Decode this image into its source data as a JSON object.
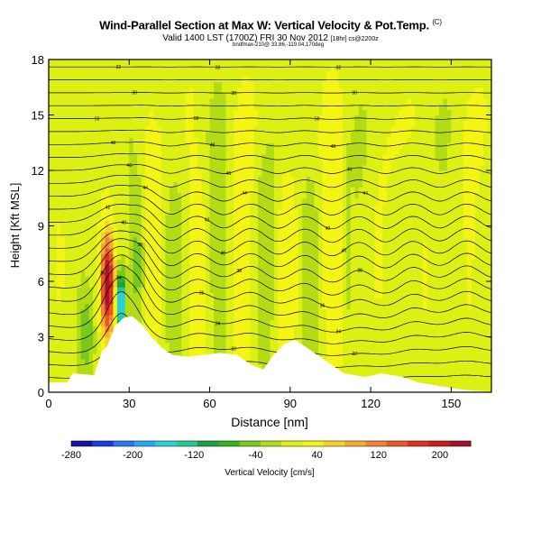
{
  "title": "Wind-Parallel Section at Max W: Vertical Velocity & Pot.Temp.",
  "title_mark": "(C)",
  "subtitle_main": "Valid 1400 LST (1700Z) FRI 30 Nov 2012",
  "subtitle_time": "[1700Z]",
  "subtitle_run": "[18hr] cs@2200z",
  "subsub": "bndfmax-210@ 33.86,-119.04,170deg",
  "chart_data": {
    "type": "heatmap",
    "title": "Wind-Parallel Section at Max W: Vertical Velocity & Pot.Temp.",
    "xlabel": "Distance [nm]",
    "ylabel": "Height [Kft MSL]",
    "xlim": [
      0,
      165
    ],
    "ylim": [
      0,
      18
    ],
    "x_ticks": [
      "0",
      "30",
      "60",
      "90",
      "120",
      "150"
    ],
    "y_ticks": [
      "0",
      "3",
      "6",
      "9",
      "12",
      "15",
      "18"
    ],
    "colorbar": {
      "label": "Vertical Velocity [cm/s]",
      "tick_labels": [
        "-280",
        "-200",
        "-120",
        "-40",
        "40",
        "120",
        "200"
      ],
      "tick_values": [
        -280,
        -200,
        -120,
        -40,
        40,
        120,
        200
      ],
      "range": [
        -280,
        240
      ],
      "colors": [
        "#1414a0",
        "#1e3cdc",
        "#2878f0",
        "#28aaf0",
        "#28d2d2",
        "#28c896",
        "#1ea046",
        "#32b41e",
        "#78c81e",
        "#b4dc14",
        "#dcf014",
        "#f5f514",
        "#f5d228",
        "#f5aa32",
        "#f08232",
        "#e65a28",
        "#dc321e",
        "#c81e1e",
        "#a01432"
      ]
    },
    "contour_labels": [
      "30",
      "32",
      "34",
      "36",
      "38",
      "40",
      "42",
      "44",
      "46",
      "48",
      "50"
    ],
    "terrain_kft": [
      {
        "x": 0,
        "h": 0.5
      },
      {
        "x": 7,
        "h": 0.5
      },
      {
        "x": 9,
        "h": 1.0
      },
      {
        "x": 17,
        "h": 0.9
      },
      {
        "x": 20,
        "h": 2.2
      },
      {
        "x": 22,
        "h": 2.5
      },
      {
        "x": 25,
        "h": 3.6
      },
      {
        "x": 28,
        "h": 4.0
      },
      {
        "x": 31,
        "h": 4.1
      },
      {
        "x": 35,
        "h": 3.6
      },
      {
        "x": 38,
        "h": 3.0
      },
      {
        "x": 42,
        "h": 2.4
      },
      {
        "x": 46,
        "h": 2.0
      },
      {
        "x": 52,
        "h": 1.9
      },
      {
        "x": 58,
        "h": 2.0
      },
      {
        "x": 64,
        "h": 2.1
      },
      {
        "x": 70,
        "h": 2.0
      },
      {
        "x": 75,
        "h": 1.5
      },
      {
        "x": 80,
        "h": 1.2
      },
      {
        "x": 84,
        "h": 2.0
      },
      {
        "x": 88,
        "h": 2.6
      },
      {
        "x": 92,
        "h": 2.8
      },
      {
        "x": 96,
        "h": 2.4
      },
      {
        "x": 100,
        "h": 2.0
      },
      {
        "x": 104,
        "h": 1.6
      },
      {
        "x": 110,
        "h": 1.0
      },
      {
        "x": 118,
        "h": 0.8
      },
      {
        "x": 124,
        "h": 1.0
      },
      {
        "x": 132,
        "h": 0.8
      },
      {
        "x": 138,
        "h": 0.5
      },
      {
        "x": 146,
        "h": 0.3
      },
      {
        "x": 155,
        "h": 0.1
      },
      {
        "x": 165,
        "h": 0.0
      }
    ]
  }
}
